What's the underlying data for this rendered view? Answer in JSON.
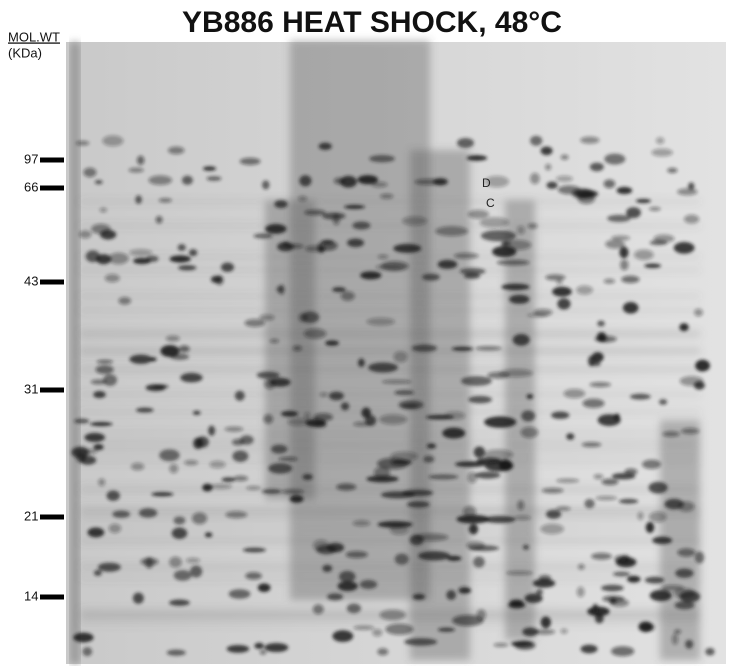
{
  "header": {
    "title": "YB886 HEAT SHOCK, 48°C"
  },
  "axis_label": {
    "line1": "MOL.WT",
    "line2": "(KDa)"
  },
  "markers": [
    97,
    66,
    43,
    31,
    21,
    14
  ],
  "spot_labels": [
    "D",
    "C"
  ]
}
